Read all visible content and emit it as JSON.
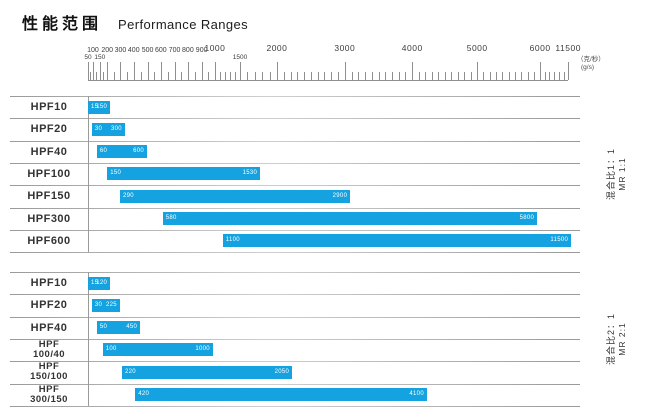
{
  "chart_data": {
    "type": "bar",
    "variant": "horizontal-range",
    "title_zh": "性能范围",
    "title_en": "Performance Ranges",
    "bar_color": "#14a2e0",
    "axis": {
      "unit_zh": "（克/秒）",
      "unit_en": "(g/s)",
      "scale": "non-linear, compressed above 1000",
      "range": [
        50,
        11500
      ],
      "ticks": [
        {
          "label": "50",
          "pct": 0,
          "cls": "lo"
        },
        {
          "label": "100",
          "pct": 1.0,
          "cls": "s"
        },
        {
          "label": "150",
          "pct": 2.4,
          "cls": "lo"
        },
        {
          "label": "200",
          "pct": 3.9,
          "cls": "s"
        },
        {
          "label": "300",
          "pct": 6.6,
          "cls": "s"
        },
        {
          "label": "400",
          "pct": 9.3,
          "cls": "s"
        },
        {
          "label": "500",
          "pct": 12.1,
          "cls": "s"
        },
        {
          "label": "600",
          "pct": 14.8,
          "cls": "s"
        },
        {
          "label": "700",
          "pct": 17.6,
          "cls": "s"
        },
        {
          "label": "800",
          "pct": 20.3,
          "cls": "s"
        },
        {
          "label": "900",
          "pct": 23.1,
          "cls": "s"
        },
        {
          "label": "1000",
          "pct": 25.8,
          "cls": "b"
        },
        {
          "label": "1500",
          "pct": 30.9,
          "cls": "lo"
        },
        {
          "label": "2000",
          "pct": 38.4,
          "cls": "b"
        },
        {
          "label": "3000",
          "pct": 52.2,
          "cls": "b"
        },
        {
          "label": "4000",
          "pct": 65.9,
          "cls": "b"
        },
        {
          "label": "5000",
          "pct": 79.1,
          "cls": "b"
        },
        {
          "label": "6000",
          "pct": 91.9,
          "cls": "b"
        },
        {
          "label": "11500",
          "pct": 97.6,
          "cls": "b"
        }
      ],
      "minors_after": [
        1,
        1,
        1,
        1,
        1,
        1,
        1,
        1,
        1,
        1,
        1,
        4,
        4,
        9,
        9,
        9,
        9,
        5
      ]
    },
    "groups": [
      {
        "side_zh": "混合比1：1",
        "side_en": "MR 1:1",
        "rows": [
          {
            "label": "HPF10",
            "min": 15,
            "max": 150,
            "bar_pct": [
              0,
              4.5
            ]
          },
          {
            "label": "HPF20",
            "min": 30,
            "max": 300,
            "bar_pct": [
              0.8,
              7.5
            ]
          },
          {
            "label": "HPF40",
            "min": 60,
            "max": 600,
            "bar_pct": [
              1.8,
              12.0
            ]
          },
          {
            "label": "HPF100",
            "min": 150,
            "max": 1530,
            "bar_pct": [
              3.9,
              35.0
            ]
          },
          {
            "label": "HPF150",
            "min": 290,
            "max": 2900,
            "bar_pct": [
              6.5,
              53.3
            ]
          },
          {
            "label": "HPF300",
            "min": 580,
            "max": 5800,
            "bar_pct": [
              15.2,
              91.3
            ]
          },
          {
            "label": "HPF600",
            "min": 1100,
            "max": 11500,
            "bar_pct": [
              27.4,
              98.2
            ]
          }
        ]
      },
      {
        "side_zh": "混合比2：1",
        "side_en": "MR 2:1",
        "rows": [
          {
            "label": "HPF10",
            "min": 15,
            "max": 120,
            "bar_pct": [
              0,
              4.5
            ]
          },
          {
            "label": "HPF20",
            "min": 30,
            "max": 225,
            "bar_pct": [
              0.8,
              6.5
            ]
          },
          {
            "label": "HPF40",
            "min": 50,
            "max": 450,
            "bar_pct": [
              1.8,
              10.6
            ]
          },
          {
            "label": "HPF\n100/40",
            "min": 100,
            "max": 1000,
            "bar_pct": [
              3.0,
              25.4
            ]
          },
          {
            "label": "HPF\n150/100",
            "min": 220,
            "max": 2050,
            "bar_pct": [
              6.9,
              41.5
            ]
          },
          {
            "label": "HPF\n300/150",
            "min": 420,
            "max": 4100,
            "bar_pct": [
              9.6,
              68.9
            ]
          }
        ]
      }
    ]
  }
}
